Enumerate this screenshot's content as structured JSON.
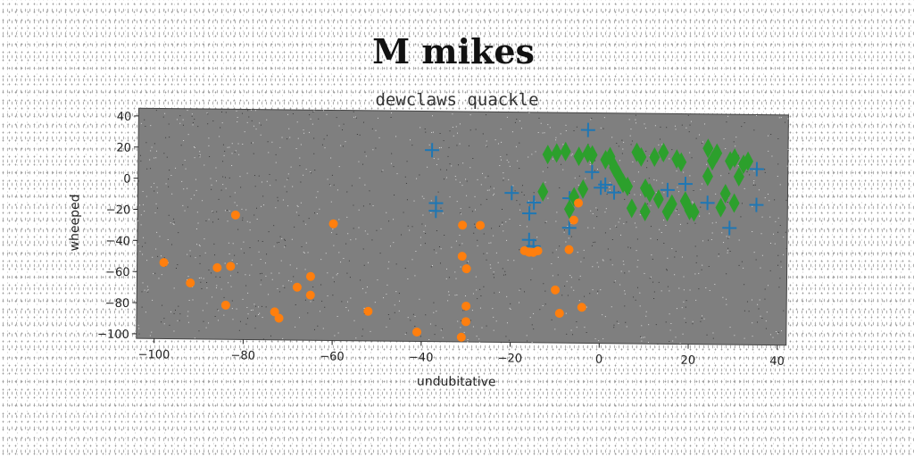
{
  "chart_data": {
    "type": "scatter",
    "title": "M mikes",
    "subtitle": "dewclaws quackle",
    "xlabel": "undubitative",
    "ylabel": "wheeped",
    "xlim": [
      -104,
      42
    ],
    "ylim": [
      -103,
      45
    ],
    "xticks": [
      -100,
      -80,
      -60,
      -40,
      -20,
      0,
      20,
      40
    ],
    "yticks": [
      40,
      20,
      0,
      -20,
      -40,
      -60,
      -80,
      -100
    ],
    "grid": false,
    "legend": "none",
    "plot_background": "#7f7f7f",
    "series": [
      {
        "marker": "plus",
        "color": "#1f77b4",
        "points": [
          [
            -38,
            20
          ],
          [
            -37,
            -14
          ],
          [
            -37,
            -19
          ],
          [
            -20,
            -7
          ],
          [
            -16,
            -20
          ],
          [
            -15,
            -13
          ],
          [
            -16,
            -37
          ],
          [
            -15,
            -41
          ],
          [
            -7,
            -29
          ],
          [
            -7,
            -10
          ],
          [
            -3,
            34
          ],
          [
            -2,
            7
          ],
          [
            0,
            -3
          ],
          [
            1,
            -1
          ],
          [
            3,
            -6
          ],
          [
            15,
            -4
          ],
          [
            19,
            0
          ],
          [
            24,
            -12
          ],
          [
            29,
            -28
          ],
          [
            35,
            10
          ],
          [
            35,
            -13
          ]
        ]
      },
      {
        "marker": "diamond",
        "color": "#2ca02c",
        "points": [
          [
            -13,
            -6
          ],
          [
            -12,
            18
          ],
          [
            -10,
            19
          ],
          [
            -8,
            20
          ],
          [
            -7,
            -17
          ],
          [
            -6,
            -9
          ],
          [
            -5,
            17
          ],
          [
            -4,
            -4
          ],
          [
            -3,
            19
          ],
          [
            -2,
            18
          ],
          [
            1,
            15
          ],
          [
            2,
            17
          ],
          [
            3,
            10
          ],
          [
            4,
            5
          ],
          [
            5,
            0
          ],
          [
            6,
            -2
          ],
          [
            7,
            -16
          ],
          [
            8,
            20
          ],
          [
            9,
            17
          ],
          [
            10,
            -3
          ],
          [
            10,
            -18
          ],
          [
            11,
            -6
          ],
          [
            12,
            17
          ],
          [
            13,
            -10
          ],
          [
            14,
            20
          ],
          [
            15,
            -18
          ],
          [
            16,
            -13
          ],
          [
            17,
            16
          ],
          [
            18,
            14
          ],
          [
            19,
            -11
          ],
          [
            20,
            -17
          ],
          [
            21,
            -18
          ],
          [
            24,
            23
          ],
          [
            24,
            5
          ],
          [
            25,
            15
          ],
          [
            26,
            20
          ],
          [
            27,
            -15
          ],
          [
            28,
            -6
          ],
          [
            29,
            15
          ],
          [
            30,
            17
          ],
          [
            30,
            -12
          ],
          [
            31,
            5
          ],
          [
            32,
            13
          ],
          [
            33,
            15
          ]
        ]
      },
      {
        "marker": "circle",
        "color": "#ff7f0e",
        "points": [
          [
            -98,
            -54
          ],
          [
            -92,
            -67
          ],
          [
            -86,
            -57
          ],
          [
            -84,
            -81
          ],
          [
            -83,
            -56
          ],
          [
            -82,
            -23
          ],
          [
            -73,
            -85
          ],
          [
            -72,
            -89
          ],
          [
            -68,
            -69
          ],
          [
            -65,
            -62
          ],
          [
            -65,
            -74
          ],
          [
            -60,
            -28
          ],
          [
            -52,
            -84
          ],
          [
            -41,
            -97
          ],
          [
            -31,
            -28
          ],
          [
            -31,
            -48
          ],
          [
            -31,
            -100
          ],
          [
            -30,
            -56
          ],
          [
            -30,
            -80
          ],
          [
            -30,
            -90
          ],
          [
            -27,
            -28
          ],
          [
            -17,
            -44
          ],
          [
            -16,
            -45
          ],
          [
            -15,
            -45
          ],
          [
            -14,
            -44
          ],
          [
            -10,
            -69
          ],
          [
            -9,
            -84
          ],
          [
            -7,
            -43
          ],
          [
            -6,
            -24
          ],
          [
            -5,
            -13
          ],
          [
            -4,
            -80
          ]
        ]
      }
    ]
  }
}
